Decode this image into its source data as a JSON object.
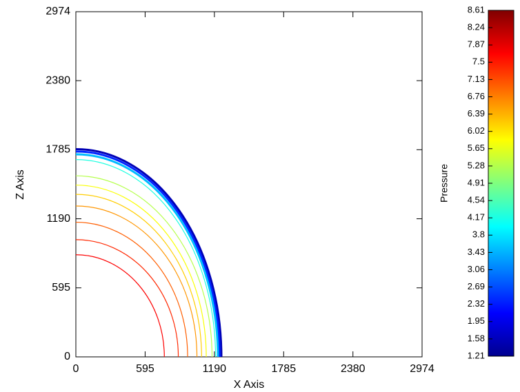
{
  "chart_data": {
    "type": "contour",
    "xlabel": "X Axis",
    "ylabel": "Z Axis",
    "colorbar_label": "Pressure",
    "xlim": [
      0,
      2974
    ],
    "ylim": [
      0,
      2974
    ],
    "xticks": [
      0,
      595,
      1190,
      1785,
      2380,
      2974
    ],
    "yticks": [
      0,
      595,
      1190,
      1785,
      2380,
      2974
    ],
    "clim": [
      1.21,
      8.61
    ],
    "cticks": [
      1.21,
      1.58,
      1.95,
      2.32,
      2.69,
      3.06,
      3.43,
      3.8,
      4.17,
      4.54,
      4.91,
      5.28,
      5.65,
      6.02,
      6.39,
      6.76,
      7.13,
      7.5,
      7.87,
      8.24,
      8.61
    ],
    "contours": [
      {
        "level": 1.6,
        "rx": 1250,
        "rz": 1790
      },
      {
        "level": 2.4,
        "rx": 1235,
        "rz": 1770
      },
      {
        "level": 3.5,
        "rx": 1220,
        "rz": 1745
      },
      {
        "level": 4.2,
        "rx": 1200,
        "rz": 1700
      },
      {
        "level": 5.3,
        "rx": 1170,
        "rz": 1560
      },
      {
        "level": 5.8,
        "rx": 1120,
        "rz": 1480
      },
      {
        "level": 6.2,
        "rx": 1080,
        "rz": 1400
      },
      {
        "level": 6.6,
        "rx": 1040,
        "rz": 1300
      },
      {
        "level": 7.0,
        "rx": 960,
        "rz": 1160
      },
      {
        "level": 7.4,
        "rx": 880,
        "rz": 1010
      },
      {
        "level": 7.7,
        "rx": 760,
        "rz": 880
      }
    ]
  }
}
